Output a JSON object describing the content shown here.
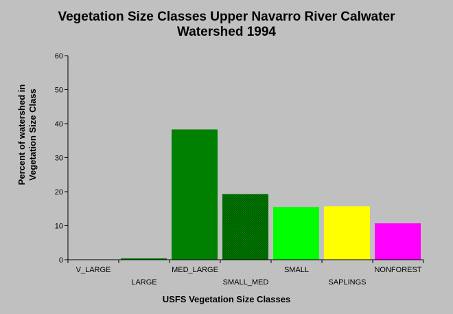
{
  "chart_data": {
    "type": "bar",
    "title_lines": [
      "Vegetation Size Classes Upper Navarro River Calwater",
      "Watershed 1994"
    ],
    "ylabel_lines": [
      "Percent of watershed in",
      "Vegetation Size Class"
    ],
    "xlabel": "USFS Vegetation Size Classes",
    "categories": [
      "V_LARGE",
      "LARGE",
      "MED_LARGE",
      "SMALL_MED",
      "SMALL",
      "SAPLINGS",
      "NONFOREST"
    ],
    "values": [
      0,
      0.4,
      38.3,
      19.3,
      15.5,
      15.7,
      10.7
    ],
    "colors": [
      "#008000",
      "#008000",
      "#008000",
      "#008000",
      "#00ff00",
      "#ffff00",
      "#ff00ff"
    ],
    "hatched": [
      false,
      false,
      false,
      true,
      false,
      false,
      false
    ],
    "ylim": [
      0,
      60
    ],
    "yticks": [
      0,
      10,
      20,
      30,
      40,
      50,
      60
    ],
    "grid": false,
    "legend": "none"
  }
}
